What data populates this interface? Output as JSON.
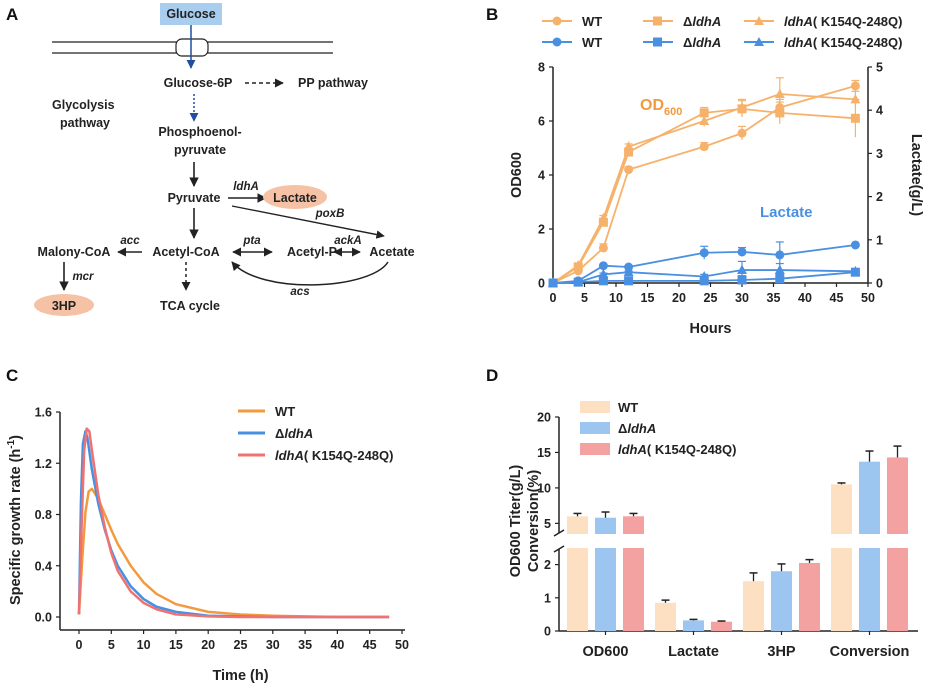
{
  "colors": {
    "orange": "#f6b26b",
    "orange_line": "#f39a3e",
    "blue": "#4a90e2",
    "red": "#ef7270",
    "bar_wt": "#fde0c2",
    "bar_ldha": "#9cc5f0",
    "bar_mut": "#f4a2a1",
    "highlight_blue": "#a8cdee",
    "highlight_orange": "#f6c2a6",
    "black": "#222222"
  },
  "panelA": {
    "letter": "A",
    "nodes": {
      "glucose": "Glucose",
      "g6p": "Glucose-6P",
      "pp": "PP pathway",
      "glycolysis1": "Glycolysis",
      "glycolysis2": "pathway",
      "pep1": "Phosphoenol-",
      "pep2": "pyruvate",
      "pyruvate": "Pyruvate",
      "lactate": "Lactate",
      "acetylcoa": "Acetyl-CoA",
      "acetylp": "Acetyl-P",
      "acetate": "Acetate",
      "malonyl": "Malony-CoA",
      "hp3": "3HP",
      "tca": "TCA cycle"
    },
    "enzymes": {
      "ldha": "ldhA",
      "poxb": "poxB",
      "pta": "pta",
      "acka": "ackA",
      "acc": "acc",
      "mcr": "mcr",
      "acs": "acs"
    }
  },
  "panelB": {
    "letter": "B",
    "legend": {
      "wt": "WT",
      "delta": "Δ",
      "ldha": "ldhA",
      "mut_name": "ldhA",
      "mut_suffix": "( K154Q-248Q)"
    },
    "annotations": {
      "od": "OD",
      "od_sub": "600",
      "lactate": "Lactate"
    }
  },
  "panelC": {
    "letter": "C"
  },
  "panelD": {
    "letter": "D"
  },
  "chart_data": [
    {
      "type": "line",
      "title": "",
      "xlabel": "Hours",
      "ylabel": "OD600",
      "y2label": "Lactate(g/L)",
      "xlim": [
        0,
        50
      ],
      "ylim": [
        0,
        8
      ],
      "y2lim": [
        0,
        5
      ],
      "xticks": [
        0,
        5,
        10,
        15,
        20,
        25,
        30,
        35,
        40,
        45,
        50
      ],
      "yticks": [
        0,
        2,
        4,
        6,
        8
      ],
      "y2ticks": [
        0,
        1,
        2,
        3,
        4,
        5
      ],
      "x": [
        0,
        4,
        8,
        12,
        24,
        30,
        36,
        48
      ],
      "series": [
        {
          "name": "WT",
          "axis": "OD600",
          "marker": "circle",
          "color": "orange",
          "values": [
            0,
            0.45,
            1.3,
            4.2,
            5.05,
            5.55,
            6.5,
            7.3
          ],
          "errors": [
            0,
            0.08,
            0.15,
            0.1,
            0.15,
            0.25,
            0.3,
            0.2
          ]
        },
        {
          "name": "ΔldhA",
          "axis": "OD600",
          "marker": "square",
          "color": "orange",
          "values": [
            0,
            0.6,
            2.25,
            4.85,
            6.3,
            6.45,
            6.3,
            6.1
          ],
          "errors": [
            0,
            0.05,
            0.1,
            0.1,
            0.2,
            0.3,
            0.4,
            0.7
          ]
        },
        {
          "name": "ldhA( K154Q-248Q)",
          "axis": "OD600",
          "marker": "triangle",
          "color": "orange",
          "values": [
            0,
            0.65,
            2.4,
            5.05,
            6.0,
            6.5,
            7.0,
            6.8
          ],
          "errors": [
            0,
            0.05,
            0.1,
            0.1,
            0.2,
            0.3,
            0.6,
            0.3
          ]
        },
        {
          "name": "WT",
          "axis": "Lactate",
          "marker": "circle",
          "color": "blue",
          "values": [
            0,
            0.05,
            0.4,
            0.37,
            0.7,
            0.72,
            0.65,
            0.88
          ],
          "errors": [
            0,
            0.02,
            0.03,
            0.03,
            0.15,
            0.1,
            0.3,
            0.03
          ]
        },
        {
          "name": "ΔldhA",
          "axis": "Lactate",
          "marker": "square",
          "color": "blue",
          "values": [
            0,
            0.02,
            0.05,
            0.05,
            0.05,
            0.07,
            0.1,
            0.25
          ],
          "errors": [
            0,
            0.01,
            0.02,
            0.02,
            0.05,
            0.1,
            0.1,
            0.05
          ]
        },
        {
          "name": "ldhA( K154Q-248Q)",
          "axis": "Lactate",
          "marker": "triangle",
          "color": "blue",
          "values": [
            0,
            0.02,
            0.2,
            0.25,
            0.15,
            0.3,
            0.3,
            0.27
          ],
          "errors": [
            0,
            0.01,
            0.03,
            0.03,
            0.05,
            0.2,
            0.15,
            0.03
          ]
        }
      ]
    },
    {
      "type": "line",
      "title": "",
      "xlabel": "Time (h)",
      "ylabel": "Specific growth rate (h",
      "ylabel_sup": "-1",
      "ylabel_end": ")",
      "xlim": [
        0,
        50
      ],
      "ylim": [
        0,
        1.6
      ],
      "xticks": [
        0,
        5,
        10,
        15,
        20,
        25,
        30,
        35,
        40,
        45,
        50
      ],
      "yticks": [
        0.0,
        0.4,
        0.8,
        1.2,
        1.6
      ],
      "ytick_labels": [
        "0.0",
        "0.4",
        "0.8",
        "1.2",
        "1.6"
      ],
      "legend": [
        {
          "name": "WT",
          "color": "orange_line",
          "parts": [
            "WT"
          ]
        },
        {
          "name": "ΔldhA",
          "color": "blue",
          "parts": [
            "Δ",
            "ldhA"
          ]
        },
        {
          "name": "ldhA( K154Q-248Q)",
          "color": "red",
          "parts": [
            "ldhA",
            "( K154Q-248Q)"
          ]
        }
      ],
      "series": [
        {
          "name": "WT",
          "color": "orange_line",
          "x": [
            0,
            0.5,
            1,
            1.5,
            2,
            3,
            4,
            5,
            6,
            8,
            10,
            12,
            15,
            20,
            25,
            30,
            35,
            40,
            48
          ],
          "values": [
            0.02,
            0.45,
            0.82,
            0.98,
            1.0,
            0.92,
            0.8,
            0.68,
            0.57,
            0.4,
            0.27,
            0.18,
            0.1,
            0.04,
            0.02,
            0.01,
            0.005,
            0.0,
            0.0
          ]
        },
        {
          "name": "ΔldhA",
          "color": "blue",
          "x": [
            0,
            0.3,
            0.6,
            1,
            1.3,
            2,
            3,
            4,
            5,
            6,
            8,
            10,
            12,
            15,
            20,
            25,
            30,
            35,
            40,
            48
          ],
          "values": [
            0.02,
            0.9,
            1.35,
            1.45,
            1.4,
            1.15,
            0.88,
            0.68,
            0.52,
            0.4,
            0.24,
            0.14,
            0.08,
            0.04,
            0.01,
            0.005,
            0.0,
            0.0,
            0.0,
            0.0
          ]
        },
        {
          "name": "ldhA( K154Q-248Q)",
          "color": "red",
          "x": [
            0,
            0.4,
            0.8,
            1.2,
            1.6,
            2,
            3,
            4,
            5,
            6,
            8,
            10,
            12,
            15,
            20,
            25,
            30,
            35,
            40,
            48
          ],
          "values": [
            0.02,
            0.7,
            1.3,
            1.47,
            1.45,
            1.3,
            0.95,
            0.7,
            0.5,
            0.36,
            0.2,
            0.11,
            0.06,
            0.02,
            0.005,
            0.0,
            0.0,
            0.0,
            0.0,
            0.0
          ]
        }
      ]
    },
    {
      "type": "bar",
      "title": "",
      "ylabel_lines": [
        "OD600  Titer(g/L)",
        "Conversion(%)"
      ],
      "categories": [
        "OD600",
        "Lactate",
        "3HP",
        "Conversion"
      ],
      "axis_break": {
        "lower_range": [
          0,
          2.5
        ],
        "upper_range": [
          3.5,
          20
        ]
      },
      "yticks_lower": [
        0,
        1,
        2
      ],
      "yticks_upper": [
        5,
        10,
        15,
        20
      ],
      "legend": [
        {
          "name": "WT",
          "color": "bar_wt",
          "parts": [
            "WT"
          ]
        },
        {
          "name": "ΔldhA",
          "color": "bar_ldha",
          "parts": [
            "Δ",
            "ldhA"
          ]
        },
        {
          "name": "ldhA( K154Q-248Q)",
          "color": "bar_mut",
          "parts": [
            "ldhA",
            "( K154Q-248Q)"
          ]
        }
      ],
      "series": [
        {
          "name": "WT",
          "color": "bar_wt",
          "values": [
            6.0,
            0.85,
            1.5,
            10.5
          ],
          "errors": [
            0.4,
            0.08,
            0.25,
            0.2
          ]
        },
        {
          "name": "ΔldhA",
          "color": "bar_ldha",
          "values": [
            5.8,
            0.32,
            1.8,
            13.7
          ],
          "errors": [
            0.8,
            0.03,
            0.22,
            1.5
          ]
        },
        {
          "name": "ldhA( K154Q-248Q)",
          "color": "bar_mut",
          "values": [
            6.0,
            0.28,
            2.05,
            14.3
          ],
          "errors": [
            0.4,
            0.02,
            0.1,
            1.6
          ]
        }
      ]
    }
  ]
}
